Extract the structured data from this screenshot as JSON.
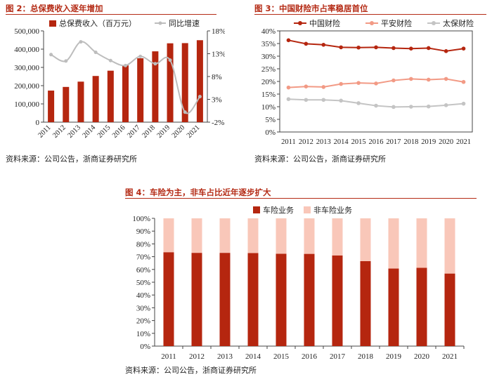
{
  "colors": {
    "premium_bar": "#b5260f",
    "growth_line": "#bdbdbd",
    "zhongguo": "#b5260f",
    "pingan": "#f29a85",
    "taibao": "#c4c4c4",
    "che": "#b5260f",
    "feiche": "#f9c7b9",
    "title": "#b42a14"
  },
  "figures": [
    {
      "title": "图 2：总保费收入逐年增加",
      "source": "资料来源：公司公告，浙商证券研究所"
    },
    {
      "title": "图 3：中国财险市占率稳居首位",
      "source": "资料来源：公司公告，浙商证券研究所"
    },
    {
      "title": "图 4：车险为主，非车占比近年逐步扩大",
      "source": "资料来源：公司公告，浙商证券研究所"
    }
  ],
  "chart_data": [
    {
      "type": "bar",
      "categories": [
        "2011",
        "2012",
        "2013",
        "2014",
        "2015",
        "2016",
        "2017",
        "2018",
        "2019",
        "2020",
        "2021"
      ],
      "series": [
        {
          "name": "总保费收入（百万元）",
          "type": "bar",
          "axis": "left",
          "values": [
            173000,
            193000,
            222000,
            253000,
            282000,
            311000,
            350000,
            388000,
            432000,
            433000,
            449000
          ]
        },
        {
          "name": "同比增速",
          "type": "line",
          "axis": "right",
          "values": [
            12.8,
            11.4,
            15.6,
            13.3,
            11.5,
            10.4,
            12.4,
            10.8,
            11.6,
            0.2,
            3.6
          ]
        }
      ],
      "ylim": [
        0,
        500000
      ],
      "yticks": [
        "0",
        "100,000",
        "200,000",
        "300,000",
        "400,000",
        "500,000"
      ],
      "y2lim": [
        -2,
        18
      ],
      "y2ticks": [
        "-2%",
        "3%",
        "8%",
        "13%",
        "18%"
      ],
      "legend": "top"
    },
    {
      "type": "line",
      "categories": [
        "2011",
        "2012",
        "2013",
        "2014",
        "2015",
        "2016",
        "2017",
        "2018",
        "2019",
        "2020",
        "2021"
      ],
      "series": [
        {
          "name": "中国财险",
          "values": [
            36.3,
            34.9,
            34.5,
            33.5,
            33.4,
            33.5,
            33.2,
            33.0,
            33.2,
            32.0,
            33.0
          ]
        },
        {
          "name": "平安财险",
          "values": [
            17.6,
            18.0,
            17.8,
            19.0,
            19.4,
            19.2,
            20.4,
            21.0,
            20.7,
            21.0,
            19.8
          ]
        },
        {
          "name": "太保财险",
          "values": [
            13.0,
            12.7,
            12.7,
            12.4,
            11.4,
            10.4,
            9.9,
            10.0,
            10.1,
            10.6,
            11.2
          ]
        }
      ],
      "ylim": [
        0,
        40
      ],
      "yticks": [
        "0%",
        "5%",
        "10%",
        "15%",
        "20%",
        "25%",
        "30%",
        "35%",
        "40%"
      ],
      "legend": "top"
    },
    {
      "type": "bar",
      "stacked": true,
      "categories": [
        "2011",
        "2012",
        "2013",
        "2014",
        "2015",
        "2016",
        "2017",
        "2018",
        "2019",
        "2020",
        "2021"
      ],
      "series": [
        {
          "name": "车险业务",
          "values": [
            73.5,
            73.0,
            73.0,
            72.8,
            72.3,
            72.2,
            71.0,
            66.5,
            60.7,
            61.3,
            56.8
          ]
        },
        {
          "name": "非车险业务",
          "values": [
            26.5,
            27.0,
            27.0,
            27.2,
            27.7,
            27.8,
            29.0,
            33.5,
            39.3,
            38.7,
            43.2
          ]
        }
      ],
      "ylim": [
        0,
        100
      ],
      "yticks": [
        "0%",
        "10%",
        "20%",
        "30%",
        "40%",
        "50%",
        "60%",
        "70%",
        "80%",
        "90%",
        "100%"
      ],
      "legend": "top"
    }
  ]
}
